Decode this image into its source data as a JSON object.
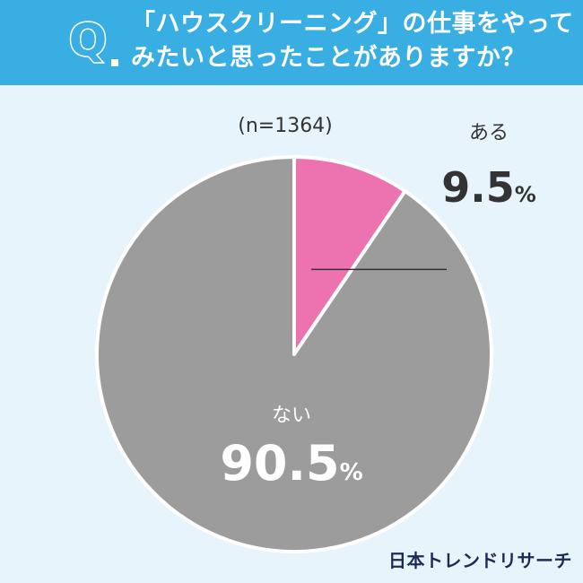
{
  "header": {
    "q_letter": "Q",
    "question_line1": "「ハウスクリーニング」の仕事をやって",
    "question_line2": "みたいと思ったことがありますか？"
  },
  "chart_data": {
    "type": "pie",
    "sample_size": "(n=1364)",
    "start_angle": "12 o'clock, clockwise",
    "slices": [
      {
        "label": "ある",
        "value": 9.5,
        "value_text": "9.5",
        "unit": "%",
        "color": "#ec72b0"
      },
      {
        "label": "ない",
        "value": 90.5,
        "value_text": "90.5",
        "unit": "%",
        "color": "#9c9c9c"
      }
    ],
    "label_color_outside": "#333333",
    "label_color_inside": "#ffffff",
    "separator_color": "#ffffff"
  },
  "footer": {
    "logo": "日本トレンドリサーチ"
  },
  "colors": {
    "background": "#e8f4fb",
    "header": "#39aee3"
  }
}
